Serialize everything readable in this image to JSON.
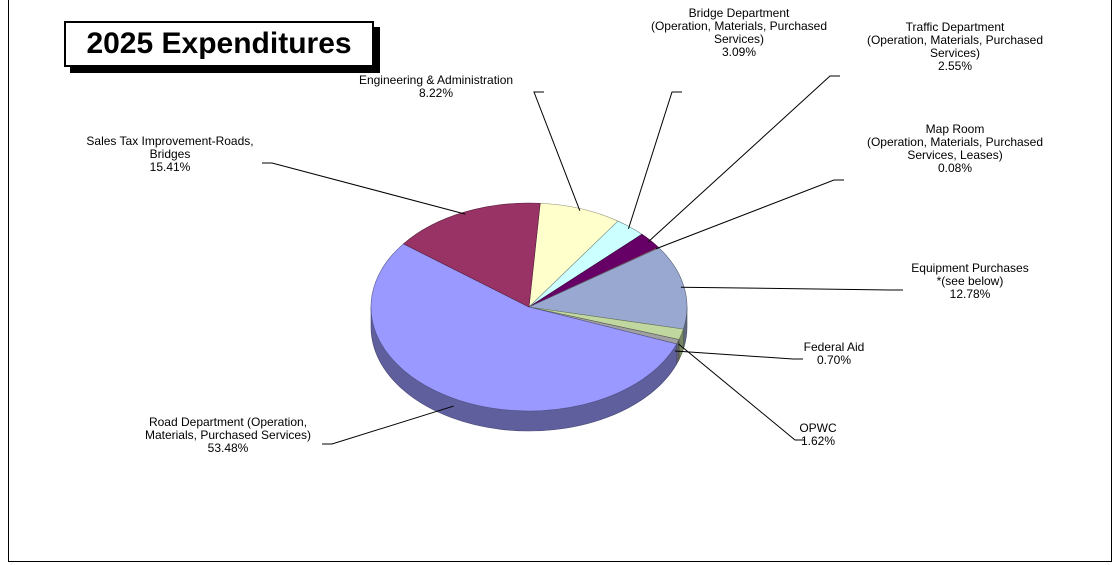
{
  "chart_data": {
    "type": "pie",
    "title": "2025 Expenditures",
    "slices": [
      {
        "name": "Road Department  (Operation, Materials, Purchased Services)",
        "label_lines": [
          "Road Department  (Operation,",
          "Materials, Purchased Services)"
        ],
        "value": 53.48,
        "percent_label": "53.48%",
        "color": "#9999ff"
      },
      {
        "name": "Sales Tax Improvement-Roads, Bridges",
        "label_lines": [
          "Sales Tax Improvement-Roads,",
          "Bridges"
        ],
        "value": 15.41,
        "percent_label": "15.41%",
        "color": "#993366"
      },
      {
        "name": "Engineering & Administration",
        "label_lines": [
          "Engineering & Administration"
        ],
        "value": 8.22,
        "percent_label": "8.22%",
        "color": "#ffffcc"
      },
      {
        "name": "Bridge Department (Operation, Materials, Purchased Services)",
        "label_lines": [
          "Bridge Department",
          "(Operation, Materials, Purchased",
          "Services)"
        ],
        "value": 3.09,
        "percent_label": "3.09%",
        "color": "#ccffff"
      },
      {
        "name": "Traffic Department (Operation, Materials, Purchased Services)",
        "label_lines": [
          "Traffic Department",
          "(Operation, Materials, Purchased",
          "Services)"
        ],
        "value": 2.55,
        "percent_label": "2.55%",
        "color": "#660066"
      },
      {
        "name": "Map Room (Operation, Materials, Purchased Services, Leases)",
        "label_lines": [
          "Map Room",
          "(Operation, Materials, Purchased",
          "Services, Leases)"
        ],
        "value": 0.08,
        "percent_label": "0.08%",
        "color": "#ff8080"
      },
      {
        "name": "Equipment Purchases *(see below)",
        "label_lines": [
          "Equipment Purchases",
          "*(see below)"
        ],
        "value": 12.78,
        "percent_label": "12.78%",
        "color": "#99a8d0"
      },
      {
        "name": "OPWC",
        "label_lines": [
          "OPWC"
        ],
        "value": 1.62,
        "percent_label": "1.62%",
        "color": "#c0d8a0"
      },
      {
        "name": "Federal Aid",
        "label_lines": [
          "Federal Aid"
        ],
        "value": 0.7,
        "percent_label": "0.70%",
        "color": "#a0a0a0"
      }
    ]
  }
}
